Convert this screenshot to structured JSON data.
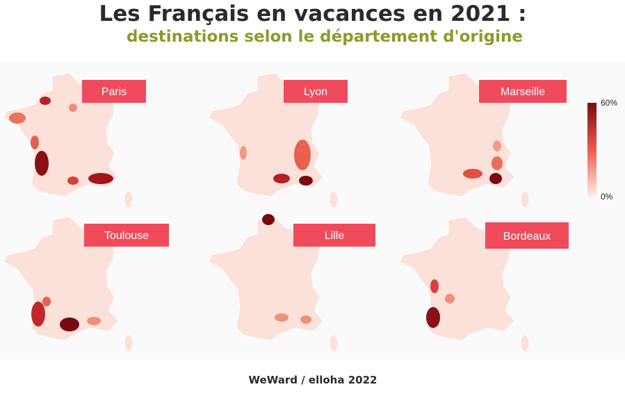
{
  "header": {
    "title": "Les Français en vacances en 2021 :",
    "subtitle": "destinations selon le département d'origine"
  },
  "maps": [
    {
      "label": "Paris"
    },
    {
      "label": "Lyon"
    },
    {
      "label": "Marseille"
    },
    {
      "label": "Toulouse"
    },
    {
      "label": "Lille"
    },
    {
      "label": "Bordeaux"
    }
  ],
  "legend": {
    "max_label": "60%",
    "min_label": "0%"
  },
  "source": "WeWard / elloha 2022"
}
